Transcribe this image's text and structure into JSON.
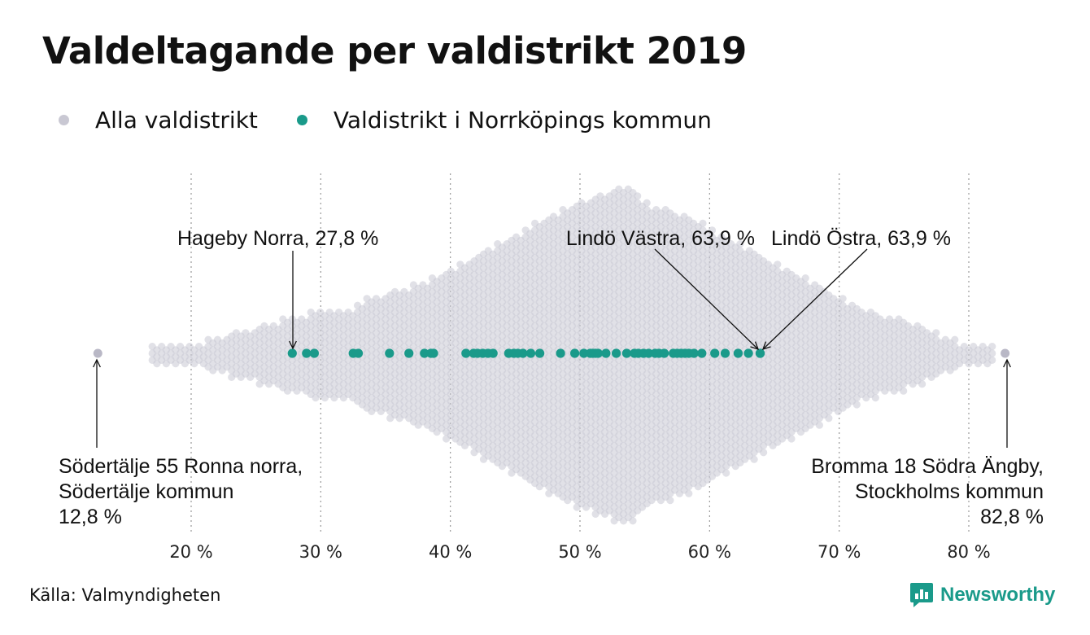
{
  "title": "Valdeltagande per valdistrikt 2019",
  "legend": [
    {
      "label": "Alla valdistrikt",
      "color": "#c9c8d3"
    },
    {
      "label": "Valdistrikt i Norrköpings kommun",
      "color": "#1a9a8a"
    }
  ],
  "source": "Källa: Valmyndigheten",
  "logo": {
    "text": "Newsworthy",
    "color": "#1a9a8a",
    "icon": "bar-chart-speech-bubble-icon"
  },
  "chart_data": {
    "type": "scatter",
    "subtype": "beeswarm",
    "xlabel": "",
    "ylabel": "",
    "xlim": [
      12,
      84
    ],
    "x_ticks": [
      20,
      30,
      40,
      50,
      60,
      70,
      80
    ],
    "x_tick_labels": [
      "20 %",
      "30 %",
      "40 %",
      "50 %",
      "60 %",
      "70 %",
      "80 %"
    ],
    "grid": "vertical dotted",
    "series": [
      {
        "name": "Alla valdistrikt",
        "color": "#c9c8d3",
        "values_description_density": {
          "x": [
            17,
            18,
            19,
            20,
            22,
            24,
            26,
            28,
            30,
            32,
            34,
            36,
            38,
            40,
            42,
            44,
            46,
            48,
            50,
            52,
            53,
            54,
            55,
            56,
            58,
            60,
            62,
            64,
            66,
            68,
            70,
            72,
            74,
            76,
            78,
            80,
            81,
            82
          ],
          "half_width_rows": [
            1,
            1,
            1,
            1,
            2,
            3,
            4,
            5,
            6,
            6,
            8,
            9,
            10,
            12,
            14,
            16,
            18,
            20,
            22,
            23,
            24,
            24,
            22,
            21,
            20,
            18,
            16,
            14,
            12,
            10,
            8,
            6,
            5,
            4,
            2,
            1,
            1,
            1
          ]
        },
        "extremes": [
          12.8,
          82.8
        ]
      },
      {
        "name": "Valdistrikt i Norrköpings kommun",
        "color": "#1a9a8a",
        "values": [
          27.8,
          28.9,
          29.5,
          32.5,
          32.9,
          35.3,
          36.8,
          38.0,
          38.5,
          38.7,
          41.2,
          41.8,
          42.1,
          42.5,
          42.9,
          43.3,
          44.5,
          44.9,
          45.2,
          45.6,
          46.2,
          46.9,
          48.5,
          49.6,
          50.3,
          50.8,
          51.0,
          51.2,
          51.4,
          52.0,
          52.8,
          53.6,
          54.2,
          54.5,
          54.9,
          55.3,
          55.8,
          56.1,
          56.5,
          57.2,
          57.5,
          57.8,
          58.1,
          58.4,
          58.8,
          59.4,
          60.4,
          61.2,
          62.2,
          63.0,
          63.9,
          63.9
        ]
      }
    ],
    "annotations": [
      {
        "text": "Hageby Norra, 27,8 %",
        "value": 27.8,
        "side": "above"
      },
      {
        "text": "Lindö Västra, 63,9 %",
        "value": 63.9,
        "side": "above"
      },
      {
        "text": "Lindö Östra, 63,9 %",
        "value": 63.9,
        "side": "above"
      },
      {
        "lines": [
          "Södertälje 55 Ronna norra,",
          "Södertälje kommun",
          "12,8 %"
        ],
        "value": 12.8,
        "side": "below",
        "align": "left"
      },
      {
        "lines": [
          "Bromma 18 Södra Ängby,",
          "Stockholms kommun",
          "82,8 %"
        ],
        "value": 82.8,
        "side": "below",
        "align": "right"
      }
    ]
  }
}
